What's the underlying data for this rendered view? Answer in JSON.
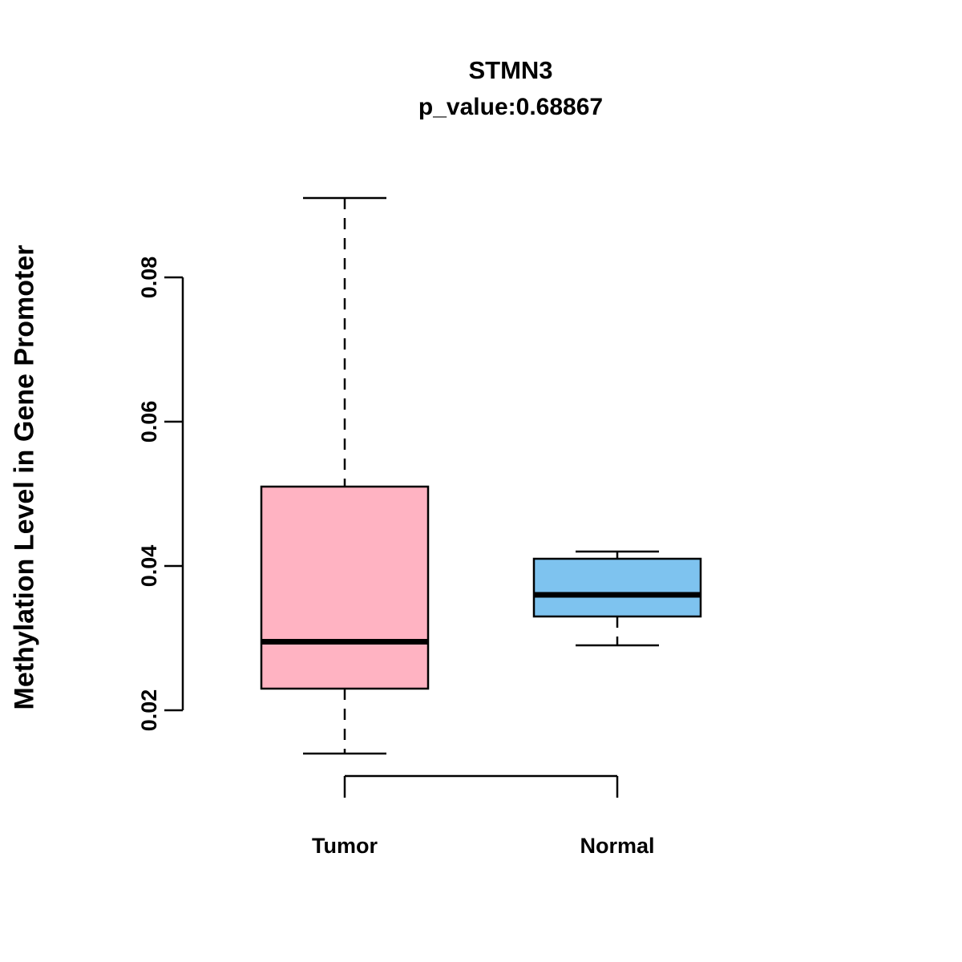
{
  "title": "STMN3",
  "subtitle": "p_value:0.68867",
  "ylabel": "Methylation Level in Gene Promoter",
  "chart_data": {
    "type": "boxplot",
    "title": "STMN3",
    "subtitle": "p_value:0.68867",
    "ylabel": "Methylation Level in Gene Promoter",
    "xlabel": "",
    "categories": [
      "Tumor",
      "Normal"
    ],
    "series": [
      {
        "name": "Tumor",
        "min": 0.014,
        "q1": 0.023,
        "median": 0.0295,
        "q3": 0.051,
        "max": 0.091,
        "color": "#FFB3C2"
      },
      {
        "name": "Normal",
        "min": 0.029,
        "q1": 0.033,
        "median": 0.036,
        "q3": 0.041,
        "max": 0.042,
        "color": "#7EC3EF"
      }
    ],
    "yticks": [
      0.02,
      0.04,
      0.06,
      0.08
    ],
    "ylim": [
      0.012,
      0.093
    ],
    "grid": false,
    "legend": "none",
    "axis_color": "#000000",
    "median_line_color": "#000000",
    "whisker_style": "dashed"
  }
}
